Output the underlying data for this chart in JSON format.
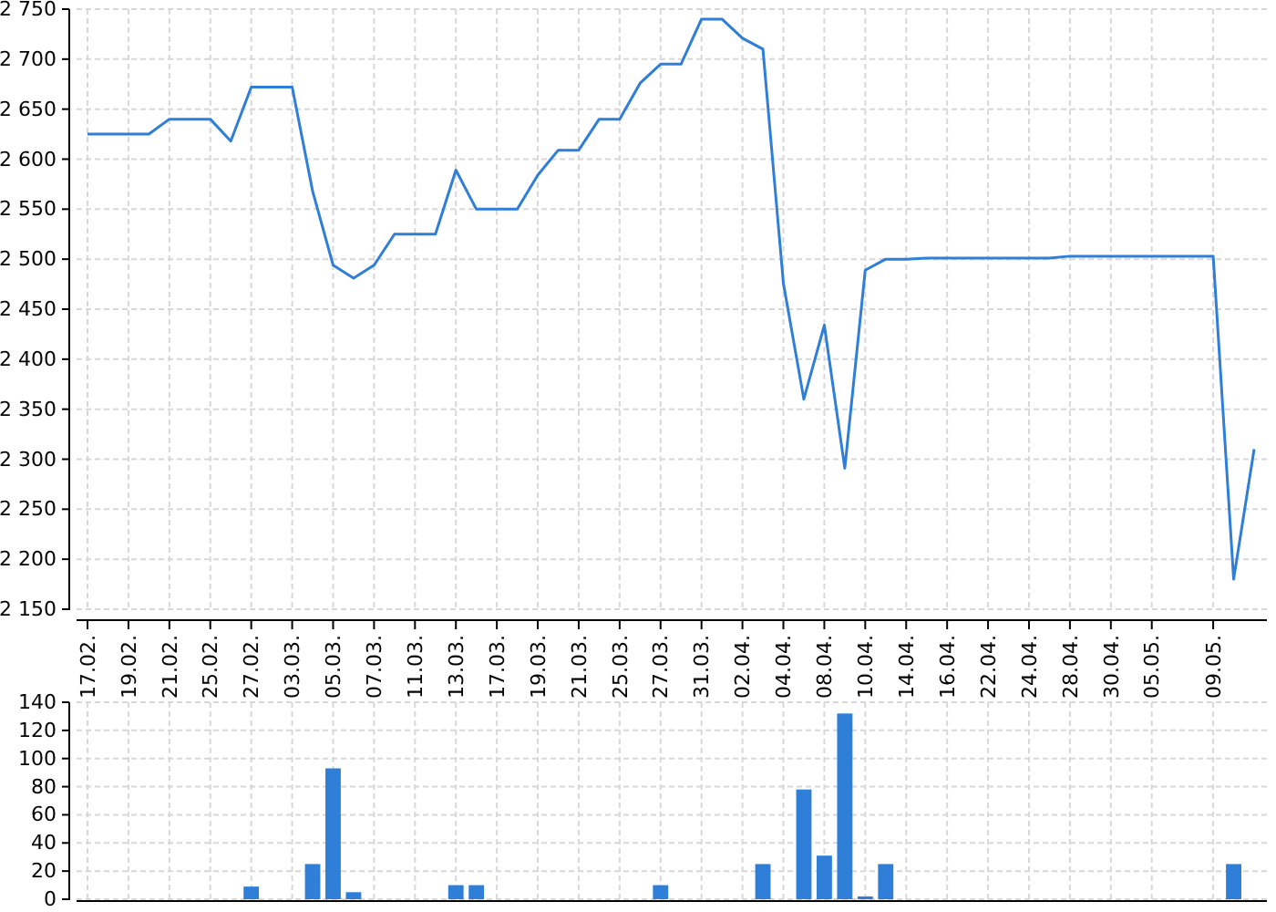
{
  "chart_data": [
    {
      "type": "line",
      "categories": [
        "17.02.",
        null,
        "19.02.",
        null,
        "21.02.",
        null,
        "25.02.",
        null,
        "27.02.",
        null,
        "03.03.",
        null,
        "05.03.",
        null,
        "07.03.",
        null,
        "11.03.",
        null,
        "13.03.",
        null,
        "17.03.",
        null,
        "19.03.",
        null,
        "21.03.",
        null,
        "25.03.",
        null,
        "27.03.",
        null,
        "31.03.",
        null,
        "02.04.",
        null,
        "04.04.",
        null,
        "08.04.",
        null,
        "10.04.",
        null,
        "14.04.",
        null,
        "16.04.",
        null,
        "22.04.",
        null,
        "24.04.",
        null,
        "28.04.",
        null,
        "30.04.",
        null,
        "05.05.",
        null,
        null,
        "09.05.",
        null,
        null
      ],
      "series": [
        {
          "color": "#2f7ed8",
          "values": [
            2625,
            2625,
            2625,
            2625,
            2640,
            2640,
            2640,
            2618,
            2672,
            2672,
            2672,
            2568,
            2494,
            2481,
            2494,
            2525,
            2525,
            2525,
            2589,
            2550,
            2550,
            2550,
            2584,
            2609,
            2609,
            2640,
            2640,
            2676,
            2695,
            2695,
            2740,
            2740,
            2721,
            2710,
            2476,
            2360,
            2434,
            2291,
            2489,
            2500,
            2500,
            2501,
            2501,
            2501,
            2501,
            2501,
            2501,
            2501,
            2503,
            2503,
            2503,
            2503,
            2503,
            2503,
            2503,
            2503,
            2180,
            2310
          ]
        }
      ],
      "ylim": [
        2150,
        2750
      ],
      "yticks": [
        {
          "value": 2150,
          "label": "2 150"
        },
        {
          "value": 2200,
          "label": "2 200"
        },
        {
          "value": 2250,
          "label": "2 250"
        },
        {
          "value": 2300,
          "label": "2 300"
        },
        {
          "value": 2350,
          "label": "2 350"
        },
        {
          "value": 2400,
          "label": "2 400"
        },
        {
          "value": 2450,
          "label": "2 450"
        },
        {
          "value": 2500,
          "label": "2 500"
        },
        {
          "value": 2550,
          "label": "2 550"
        },
        {
          "value": 2600,
          "label": "2 600"
        },
        {
          "value": 2650,
          "label": "2 650"
        },
        {
          "value": 2700,
          "label": "2 700"
        },
        {
          "value": 2750,
          "label": "2 750"
        }
      ],
      "grid": true,
      "marker": "none",
      "line_style": "solid"
    },
    {
      "type": "bar",
      "categories": [
        "17.02.",
        null,
        "19.02.",
        null,
        "21.02.",
        null,
        "25.02.",
        null,
        "27.02.",
        null,
        "03.03.",
        null,
        "05.03.",
        null,
        "07.03.",
        null,
        "11.03.",
        null,
        "13.03.",
        null,
        "17.03.",
        null,
        "19.03.",
        null,
        "21.03.",
        null,
        "25.03.",
        null,
        "27.03.",
        null,
        "31.03.",
        null,
        "02.04.",
        null,
        "04.04.",
        null,
        "08.04.",
        null,
        "10.04.",
        null,
        "14.04.",
        null,
        "16.04.",
        null,
        "22.04.",
        null,
        "24.04.",
        null,
        "28.04.",
        null,
        "30.04.",
        null,
        "05.05.",
        null,
        null,
        "09.05.",
        null,
        null
      ],
      "series": [
        {
          "color": "#2f7ed8",
          "values": [
            0,
            0,
            0,
            0,
            0,
            0,
            0,
            0,
            9,
            0,
            0,
            25,
            93,
            5,
            0,
            0,
            0,
            0,
            10,
            10,
            0,
            0,
            0,
            0,
            0,
            0,
            0,
            0,
            10,
            0,
            0,
            0,
            0,
            25,
            0,
            78,
            31,
            132,
            2,
            25,
            0,
            0,
            0,
            0,
            0,
            0,
            0,
            0,
            0,
            0,
            0,
            0,
            0,
            0,
            0,
            0,
            25,
            0
          ]
        }
      ],
      "ylim": [
        0,
        140
      ],
      "yticks": [
        0,
        20,
        40,
        60,
        80,
        100,
        120,
        140
      ],
      "grid": true,
      "tick_labels": "y"
    }
  ]
}
